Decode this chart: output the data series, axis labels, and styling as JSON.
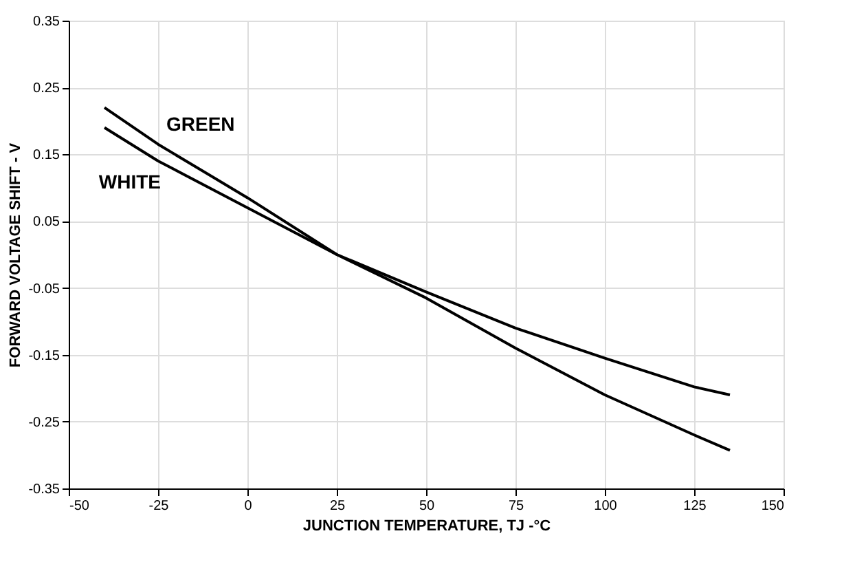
{
  "chart_data": {
    "type": "line",
    "xlabel": "JUNCTION TEMPERATURE, TJ -°C",
    "ylabel": "FORWARD VOLTAGE SHIFT - V",
    "x": [
      -40,
      -25,
      0,
      25,
      50,
      75,
      100,
      125,
      135
    ],
    "series": [
      {
        "name": "GREEN",
        "color": "#000000",
        "values": [
          0.22,
          0.165,
          0.085,
          0.0,
          -0.065,
          -0.14,
          -0.21,
          -0.27,
          -0.293
        ]
      },
      {
        "name": "WHITE",
        "color": "#000000",
        "values": [
          0.19,
          0.14,
          0.07,
          0.0,
          -0.056,
          -0.11,
          -0.155,
          -0.198,
          -0.21
        ]
      }
    ],
    "xlim": [
      -50,
      150
    ],
    "xticks": [
      -50,
      -25,
      0,
      25,
      50,
      75,
      100,
      125,
      150
    ],
    "ylim": [
      -0.35,
      0.35
    ],
    "yticks": [
      -0.35,
      -0.25,
      -0.15,
      -0.05,
      0.05,
      0.15,
      0.25,
      0.35
    ],
    "grid": true,
    "legend": false,
    "marker": "none",
    "line_style": "solid"
  }
}
